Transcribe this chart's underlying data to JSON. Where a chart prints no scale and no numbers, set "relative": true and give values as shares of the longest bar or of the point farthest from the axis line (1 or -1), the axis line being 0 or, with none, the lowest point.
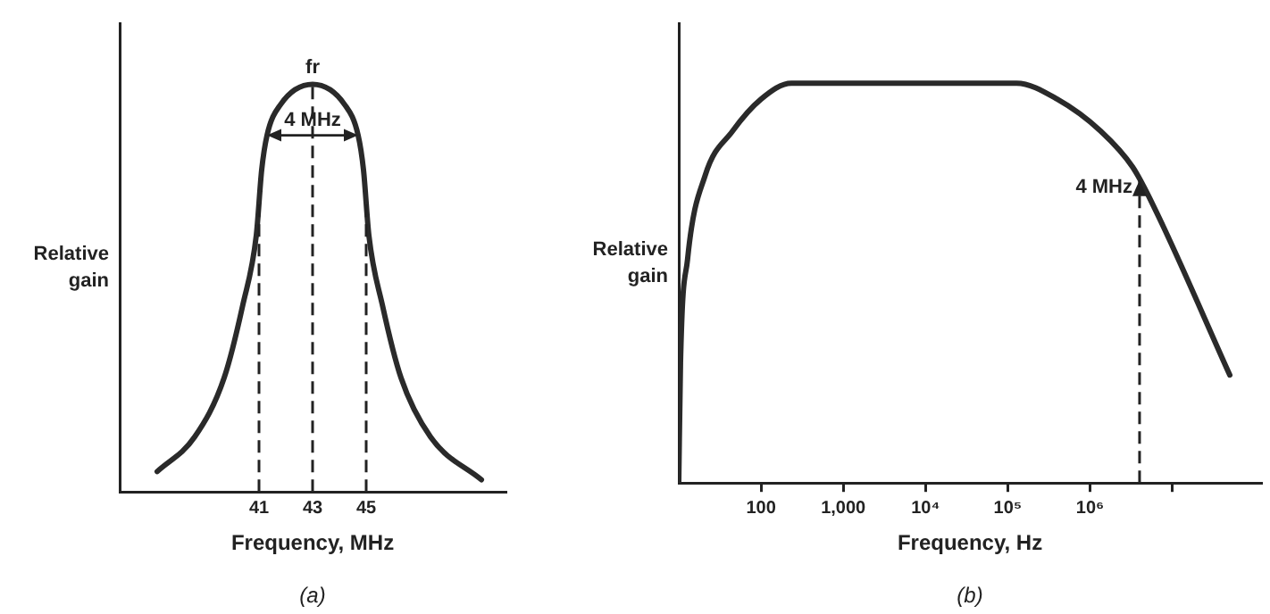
{
  "chart_data": [
    {
      "type": "line",
      "xlabel": "Frequency, MHz",
      "ylabel": "Relative gain",
      "relative": true,
      "tick_labels": "x",
      "grid": false,
      "legend": false,
      "marker": "none",
      "line_style": "solid",
      "xlim": [
        35.8,
        50.2
      ],
      "xticks": [
        41,
        43,
        45
      ],
      "series": [
        {
          "color": "#2a2a2a",
          "x": [
            37.2,
            38.6,
            39.7,
            40.4,
            40.9,
            41.1,
            41.3,
            41.8,
            43,
            44.2,
            44.7,
            44.9,
            45.1,
            45.6,
            46.3,
            47.4,
            49.3
          ],
          "values": [
            0.05,
            0.135,
            0.28,
            0.46,
            0.63,
            0.79,
            0.875,
            0.95,
            1,
            0.95,
            0.875,
            0.79,
            0.63,
            0.46,
            0.28,
            0.135,
            0.03
          ]
        }
      ],
      "ref_lines": [
        {
          "axis": "x",
          "value": 41,
          "line_style": "dashed"
        },
        {
          "axis": "x",
          "value": 43,
          "line_style": "dashed"
        },
        {
          "axis": "x",
          "value": 45,
          "line_style": "dashed"
        }
      ],
      "annotations": [
        {
          "text": "fr",
          "x": 43,
          "y": 1
        },
        {
          "text": "4 MHz",
          "x": 43,
          "y": 0.875
        },
        "(a)"
      ]
    },
    {
      "type": "line",
      "xlabel": "Frequency, Hz",
      "ylabel": "Relative gain",
      "relative": true,
      "tick_labels": "x",
      "grid": false,
      "legend": false,
      "marker": "none",
      "line_style": "solid",
      "log": "x",
      "xlim": [
        10,
        120000000
      ],
      "xticks": [
        100,
        {
          "value": 1000,
          "label": "1,000"
        },
        {
          "value": 10000,
          "label": "10⁴"
        },
        {
          "value": 100000,
          "label": "10⁵"
        },
        {
          "value": 1000000,
          "label": "10⁶"
        },
        {
          "value": 10000000,
          "label": null
        }
      ],
      "series": [
        {
          "color": "#2a2a2a",
          "x": [
            10,
            10.5,
            12.8,
            21,
            45,
            100,
            234,
            128000,
            400000,
            1350000,
            3300000,
            6000000,
            50000000
          ],
          "values": [
            0,
            0.3,
            0.56,
            0.77,
            0.88,
            0.96,
            1,
            1,
            0.96,
            0.88,
            0.79,
            0.69,
            0.27
          ]
        }
      ],
      "ref_lines": [
        {
          "axis": "x",
          "value": 4000000,
          "label": "4 MHz",
          "line_style": "dashed"
        }
      ],
      "annotations": [
        "(b)"
      ]
    }
  ]
}
